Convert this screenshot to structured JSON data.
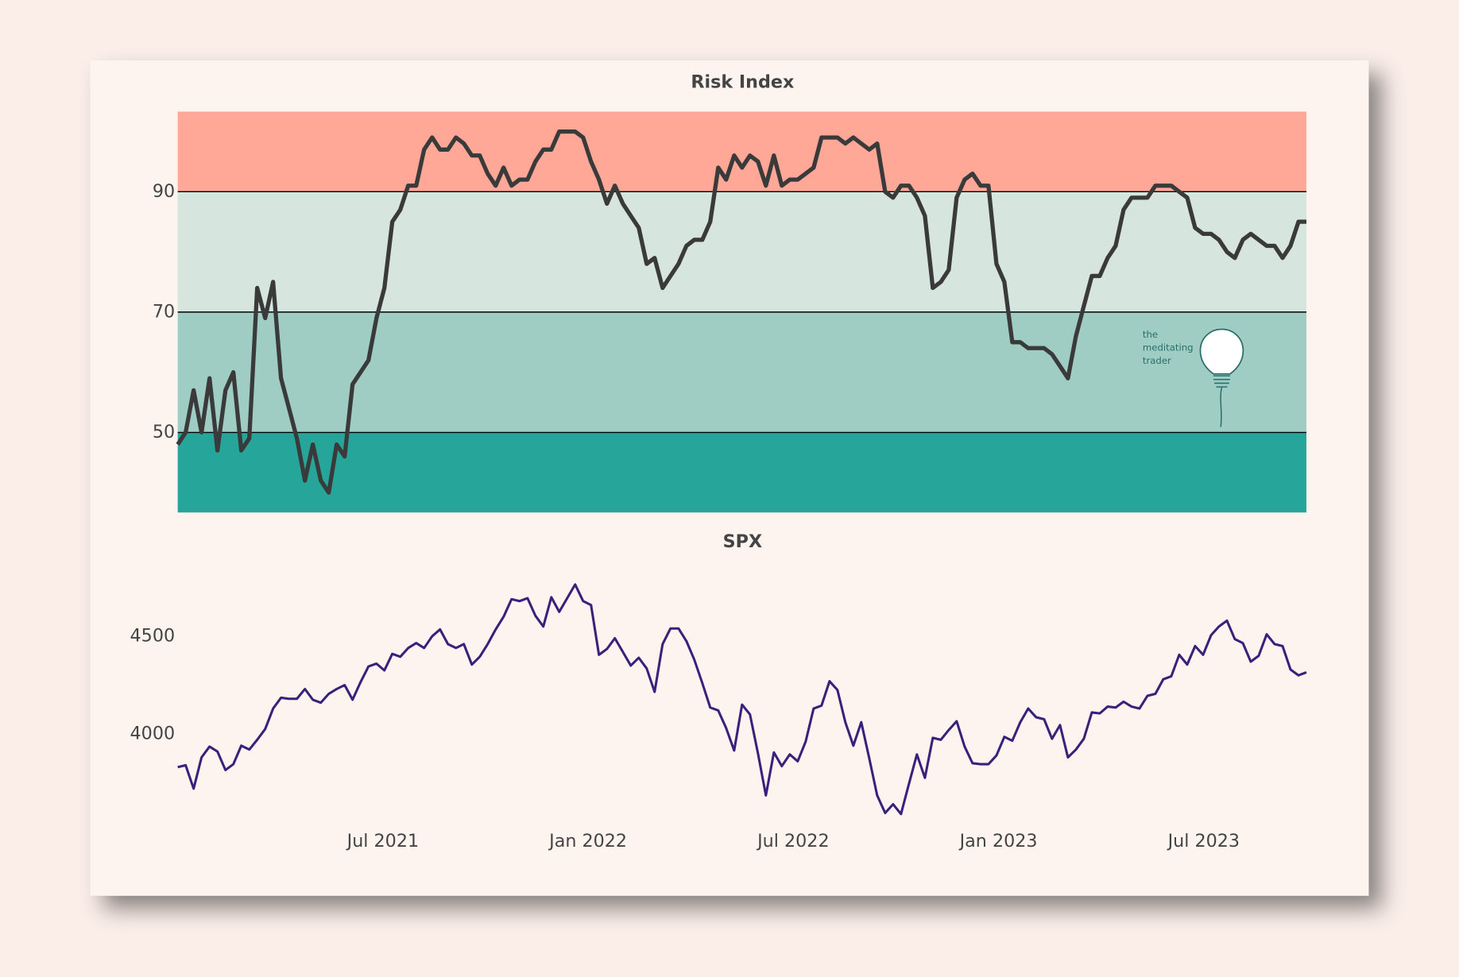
{
  "chart_data": [
    {
      "type": "line",
      "title": "Risk Index",
      "series": [
        {
          "color": "#3a3a3a",
          "values": [
            48,
            50,
            57,
            50,
            59,
            47,
            57,
            60,
            47,
            49,
            74,
            69,
            75,
            59,
            54,
            49,
            42,
            48,
            42,
            40,
            48,
            46,
            58,
            60,
            62,
            69,
            74,
            85,
            87,
            91,
            91,
            97,
            99,
            97,
            97,
            99,
            98,
            96,
            96,
            93,
            91,
            94,
            91,
            92,
            92,
            95,
            97,
            97,
            100,
            100,
            100,
            99,
            95,
            92,
            88,
            91,
            88,
            86,
            84,
            78,
            79,
            74,
            76,
            78,
            81,
            82,
            82,
            85,
            94,
            92,
            96,
            94,
            96,
            95,
            91,
            96,
            91,
            92,
            92,
            93,
            94,
            99,
            99,
            99,
            98,
            99,
            98,
            97,
            98,
            90,
            89,
            91,
            91,
            89,
            86,
            74,
            75,
            77,
            89,
            92,
            93,
            91,
            91,
            78,
            75,
            65,
            65,
            64,
            64,
            64,
            63,
            61,
            59,
            66,
            71,
            76,
            76,
            79,
            81,
            87,
            89,
            89,
            89,
            91,
            91,
            91,
            90,
            89,
            84,
            83,
            83,
            82,
            80,
            79,
            82,
            83,
            82,
            81,
            81,
            79,
            81,
            85,
            85
          ]
        }
      ],
      "ylim": [
        36.7,
        103.3
      ],
      "yticks": [
        50,
        70,
        90
      ],
      "grid": true,
      "grid_color": "#000000",
      "band_edges": [
        50,
        70,
        90
      ],
      "band_colors": [
        "#26a69a",
        "#9fcdc4",
        "#d6e6df",
        "#ffa898"
      ],
      "annotation": [
        "the",
        "meditating",
        "trader"
      ]
    },
    {
      "type": "line",
      "title": "SPX",
      "series": [
        {
          "color": "#3b1f7a",
          "values": [
            3830,
            3840,
            3720,
            3880,
            3935,
            3910,
            3815,
            3845,
            3940,
            3920,
            3970,
            4025,
            4130,
            4185,
            4180,
            4180,
            4230,
            4175,
            4160,
            4205,
            4230,
            4250,
            4175,
            4265,
            4345,
            4360,
            4325,
            4410,
            4395,
            4440,
            4465,
            4440,
            4500,
            4535,
            4460,
            4440,
            4460,
            4355,
            4395,
            4460,
            4535,
            4600,
            4690,
            4680,
            4695,
            4605,
            4550,
            4700,
            4625,
            4695,
            4765,
            4680,
            4660,
            4405,
            4435,
            4490,
            4420,
            4350,
            4390,
            4335,
            4215,
            4460,
            4540,
            4540,
            4475,
            4380,
            4260,
            4135,
            4120,
            4030,
            3915,
            4150,
            4100,
            3900,
            3685,
            3905,
            3835,
            3895,
            3860,
            3960,
            4130,
            4145,
            4270,
            4225,
            4060,
            3940,
            4060,
            3875,
            3685,
            3595,
            3640,
            3590,
            3745,
            3895,
            3775,
            3980,
            3970,
            4020,
            4065,
            3935,
            3850,
            3845,
            3845,
            3890,
            3985,
            3965,
            4060,
            4130,
            4085,
            4075,
            3975,
            4045,
            3880,
            3920,
            3975,
            4110,
            4105,
            4140,
            4135,
            4165,
            4140,
            4130,
            4195,
            4205,
            4280,
            4295,
            4405,
            4355,
            4450,
            4405,
            4505,
            4550,
            4580,
            4485,
            4465,
            4370,
            4400,
            4510,
            4460,
            4450,
            4330,
            4300,
            4315
          ]
        }
      ],
      "ylim": [
        3567,
        4829
      ],
      "yticks": [
        4000,
        4500
      ],
      "xlim": [
        "2021-01",
        "2023-10"
      ],
      "xticks": [
        {
          "value": "2021-07",
          "label": "Jul 2021"
        },
        {
          "value": "2022-01",
          "label": "Jan 2022"
        },
        {
          "value": "2022-07",
          "label": "Jul 2022"
        },
        {
          "value": "2023-01",
          "label": "Jan 2023"
        },
        {
          "value": "2023-07",
          "label": "Jul 2023"
        }
      ]
    }
  ]
}
